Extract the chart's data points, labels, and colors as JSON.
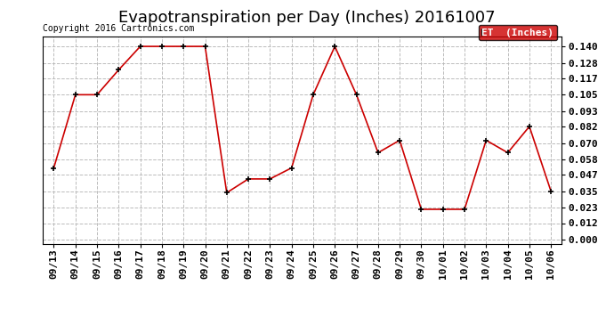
{
  "title": "Evapotranspiration per Day (Inches) 20161007",
  "copyright_text": "Copyright 2016 Cartronics.com",
  "legend_label": "ET  (Inches)",
  "legend_bg": "#cc0000",
  "legend_text_color": "#ffffff",
  "x_labels": [
    "09/13",
    "09/14",
    "09/15",
    "09/16",
    "09/17",
    "09/18",
    "09/19",
    "09/20",
    "09/21",
    "09/22",
    "09/23",
    "09/24",
    "09/25",
    "09/26",
    "09/27",
    "09/28",
    "09/29",
    "09/30",
    "10/01",
    "10/02",
    "10/03",
    "10/04",
    "10/05",
    "10/06"
  ],
  "y_values": [
    0.052,
    0.105,
    0.105,
    0.123,
    0.14,
    0.14,
    0.14,
    0.14,
    0.034,
    0.044,
    0.044,
    0.052,
    0.105,
    0.14,
    0.105,
    0.063,
    0.072,
    0.022,
    0.022,
    0.022,
    0.072,
    0.063,
    0.082,
    0.035
  ],
  "y_ticks": [
    0.0,
    0.012,
    0.023,
    0.035,
    0.047,
    0.058,
    0.07,
    0.082,
    0.093,
    0.105,
    0.117,
    0.128,
    0.14
  ],
  "line_color": "#cc0000",
  "marker": "+",
  "marker_color": "#000000",
  "marker_size": 5,
  "line_width": 1.2,
  "grid_color": "#bbbbbb",
  "grid_style": "--",
  "background_color": "#ffffff",
  "ylim": [
    -0.003,
    0.147
  ],
  "title_fontsize": 13,
  "tick_fontsize": 8,
  "copyright_fontsize": 7,
  "legend_fontsize": 8
}
